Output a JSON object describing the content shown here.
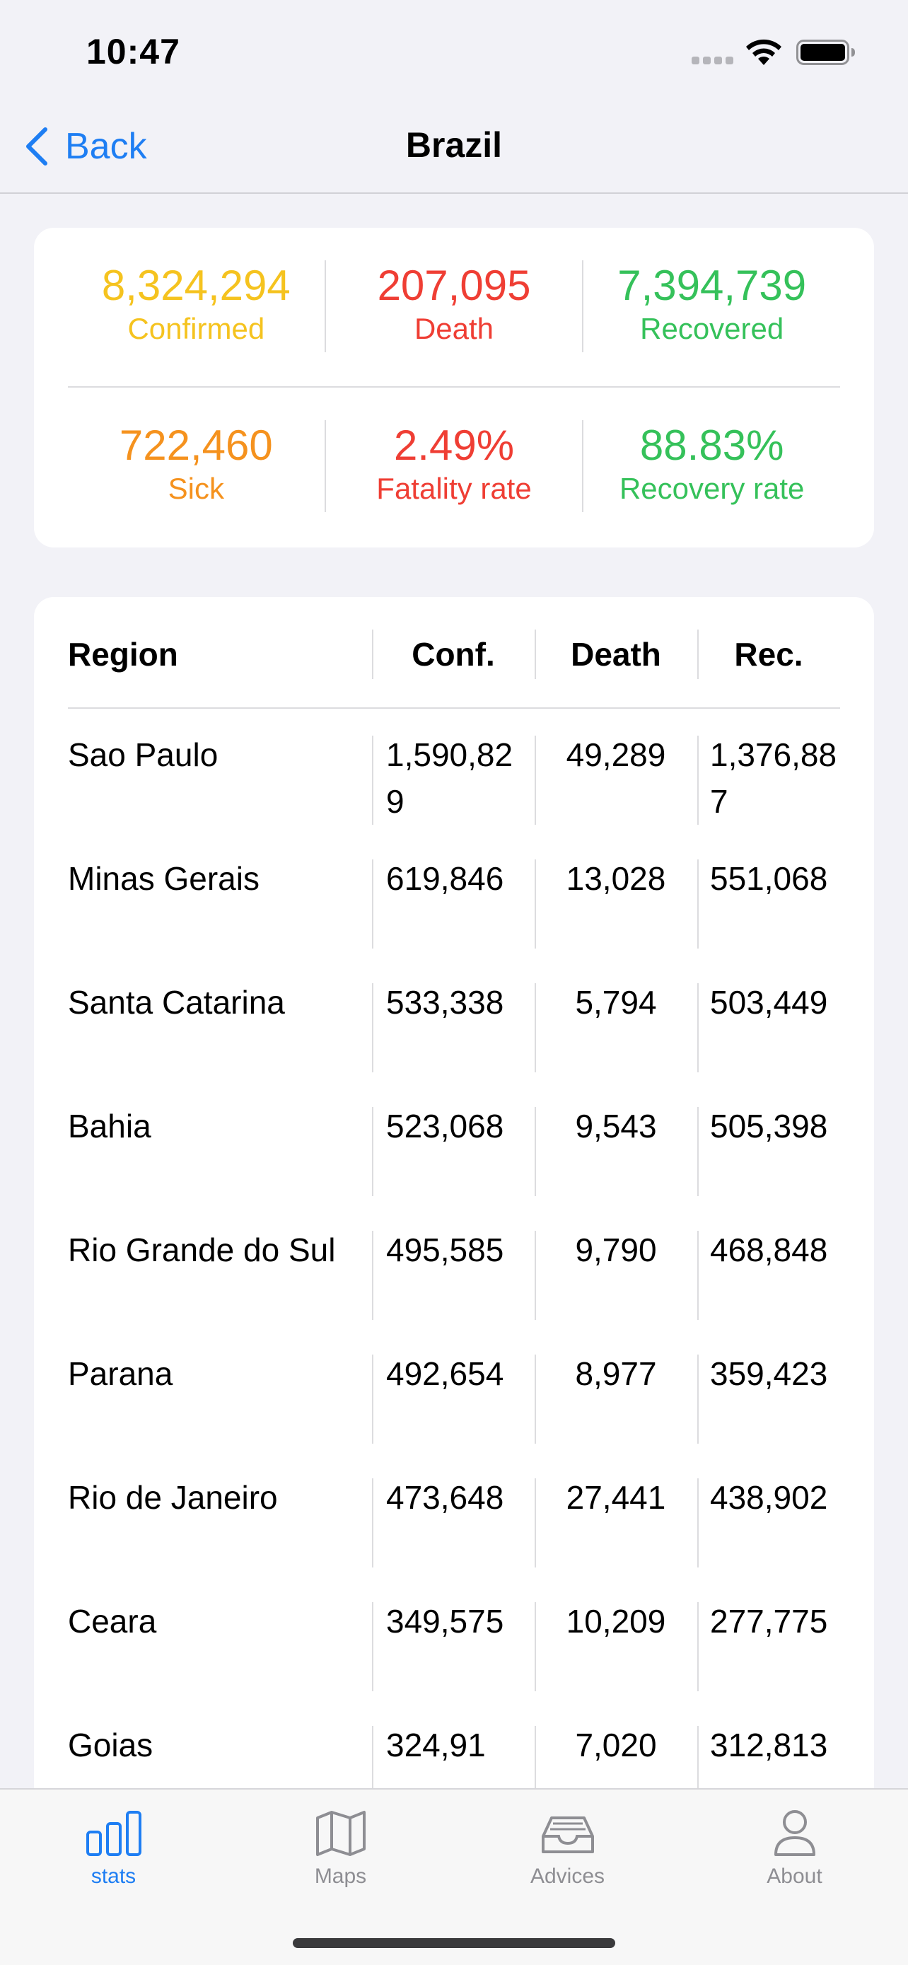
{
  "status_bar": {
    "time": "10:47"
  },
  "nav": {
    "back_label": "Back",
    "title": "Brazil"
  },
  "summary": [
    {
      "value": "8,324,294",
      "label": "Confirmed",
      "color": "#f5c31f"
    },
    {
      "value": "207,095",
      "label": "Death",
      "color": "#ef3e34"
    },
    {
      "value": "7,394,739",
      "label": "Recovered",
      "color": "#35c15a"
    },
    {
      "value": "722,460",
      "label": "Sick",
      "color": "#f5921e"
    },
    {
      "value": "2.49%",
      "label": "Fatality rate",
      "color": "#ef3e34"
    },
    {
      "value": "88.83%",
      "label": "Recovery rate",
      "color": "#35c15a"
    }
  ],
  "table": {
    "headers": {
      "region": "Region",
      "conf": "Conf.",
      "death": "Death",
      "rec": "Rec."
    },
    "rows": [
      {
        "region": "Sao Paulo",
        "conf": "1,590,829",
        "death": "49,289",
        "rec": "1,376,887"
      },
      {
        "region": "Minas Gerais",
        "conf": "619,846",
        "death": "13,028",
        "rec": "551,068"
      },
      {
        "region": "Santa Catarina",
        "conf": "533,338",
        "death": "5,794",
        "rec": "503,449"
      },
      {
        "region": "Bahia",
        "conf": "523,068",
        "death": "9,543",
        "rec": "505,398"
      },
      {
        "region": "Rio Grande do Sul",
        "conf": "495,585",
        "death": "9,790",
        "rec": "468,848"
      },
      {
        "region": "Parana",
        "conf": "492,654",
        "death": "8,977",
        "rec": "359,423"
      },
      {
        "region": "Rio de Janeiro",
        "conf": "473,648",
        "death": "27,441",
        "rec": "438,902"
      },
      {
        "region": "Ceara",
        "conf": "349,575",
        "death": "10,209",
        "rec": "277,775"
      },
      {
        "region": "Goias",
        "conf": "324,91",
        "death": "7,020",
        "rec": "312,813"
      }
    ]
  },
  "tabs": [
    {
      "label": "stats",
      "icon": "bar-chart-icon",
      "active": true
    },
    {
      "label": "Maps",
      "icon": "map-icon",
      "active": false
    },
    {
      "label": "Advices",
      "icon": "tray-icon",
      "active": false
    },
    {
      "label": "About",
      "icon": "person-icon",
      "active": false
    }
  ],
  "colors": {
    "accent": "#1e7ef3",
    "inactive": "#8e8e93"
  }
}
